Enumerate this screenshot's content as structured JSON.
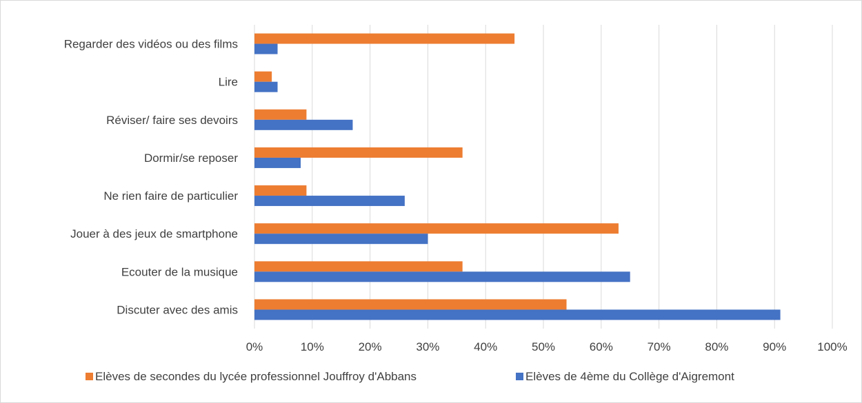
{
  "chart_data": {
    "type": "bar",
    "orientation": "horizontal",
    "categories": [
      "Regarder des vidéos ou des films",
      "Lire",
      "Réviser/ faire ses devoirs",
      "Dormir/se reposer",
      "Ne rien faire de particulier",
      "Jouer à des jeux de smartphone",
      "Ecouter de la musique",
      "Discuter avec des amis"
    ],
    "series": [
      {
        "name": "Elèves de secondes du lycée professionnel Jouffroy d'Abbans",
        "color": "#ed7d31",
        "values": [
          45,
          3,
          9,
          36,
          9,
          63,
          36,
          54
        ]
      },
      {
        "name": "Elèves de 4ème du Collège d'Aigremont",
        "color": "#4472c4",
        "values": [
          4,
          4,
          17,
          8,
          26,
          30,
          65,
          91
        ]
      }
    ],
    "xlim": [
      0,
      100
    ],
    "xticks": [
      "0%",
      "10%",
      "20%",
      "30%",
      "40%",
      "50%",
      "60%",
      "70%",
      "80%",
      "90%",
      "100%"
    ],
    "grid": "vertical",
    "legend": "bottom"
  }
}
